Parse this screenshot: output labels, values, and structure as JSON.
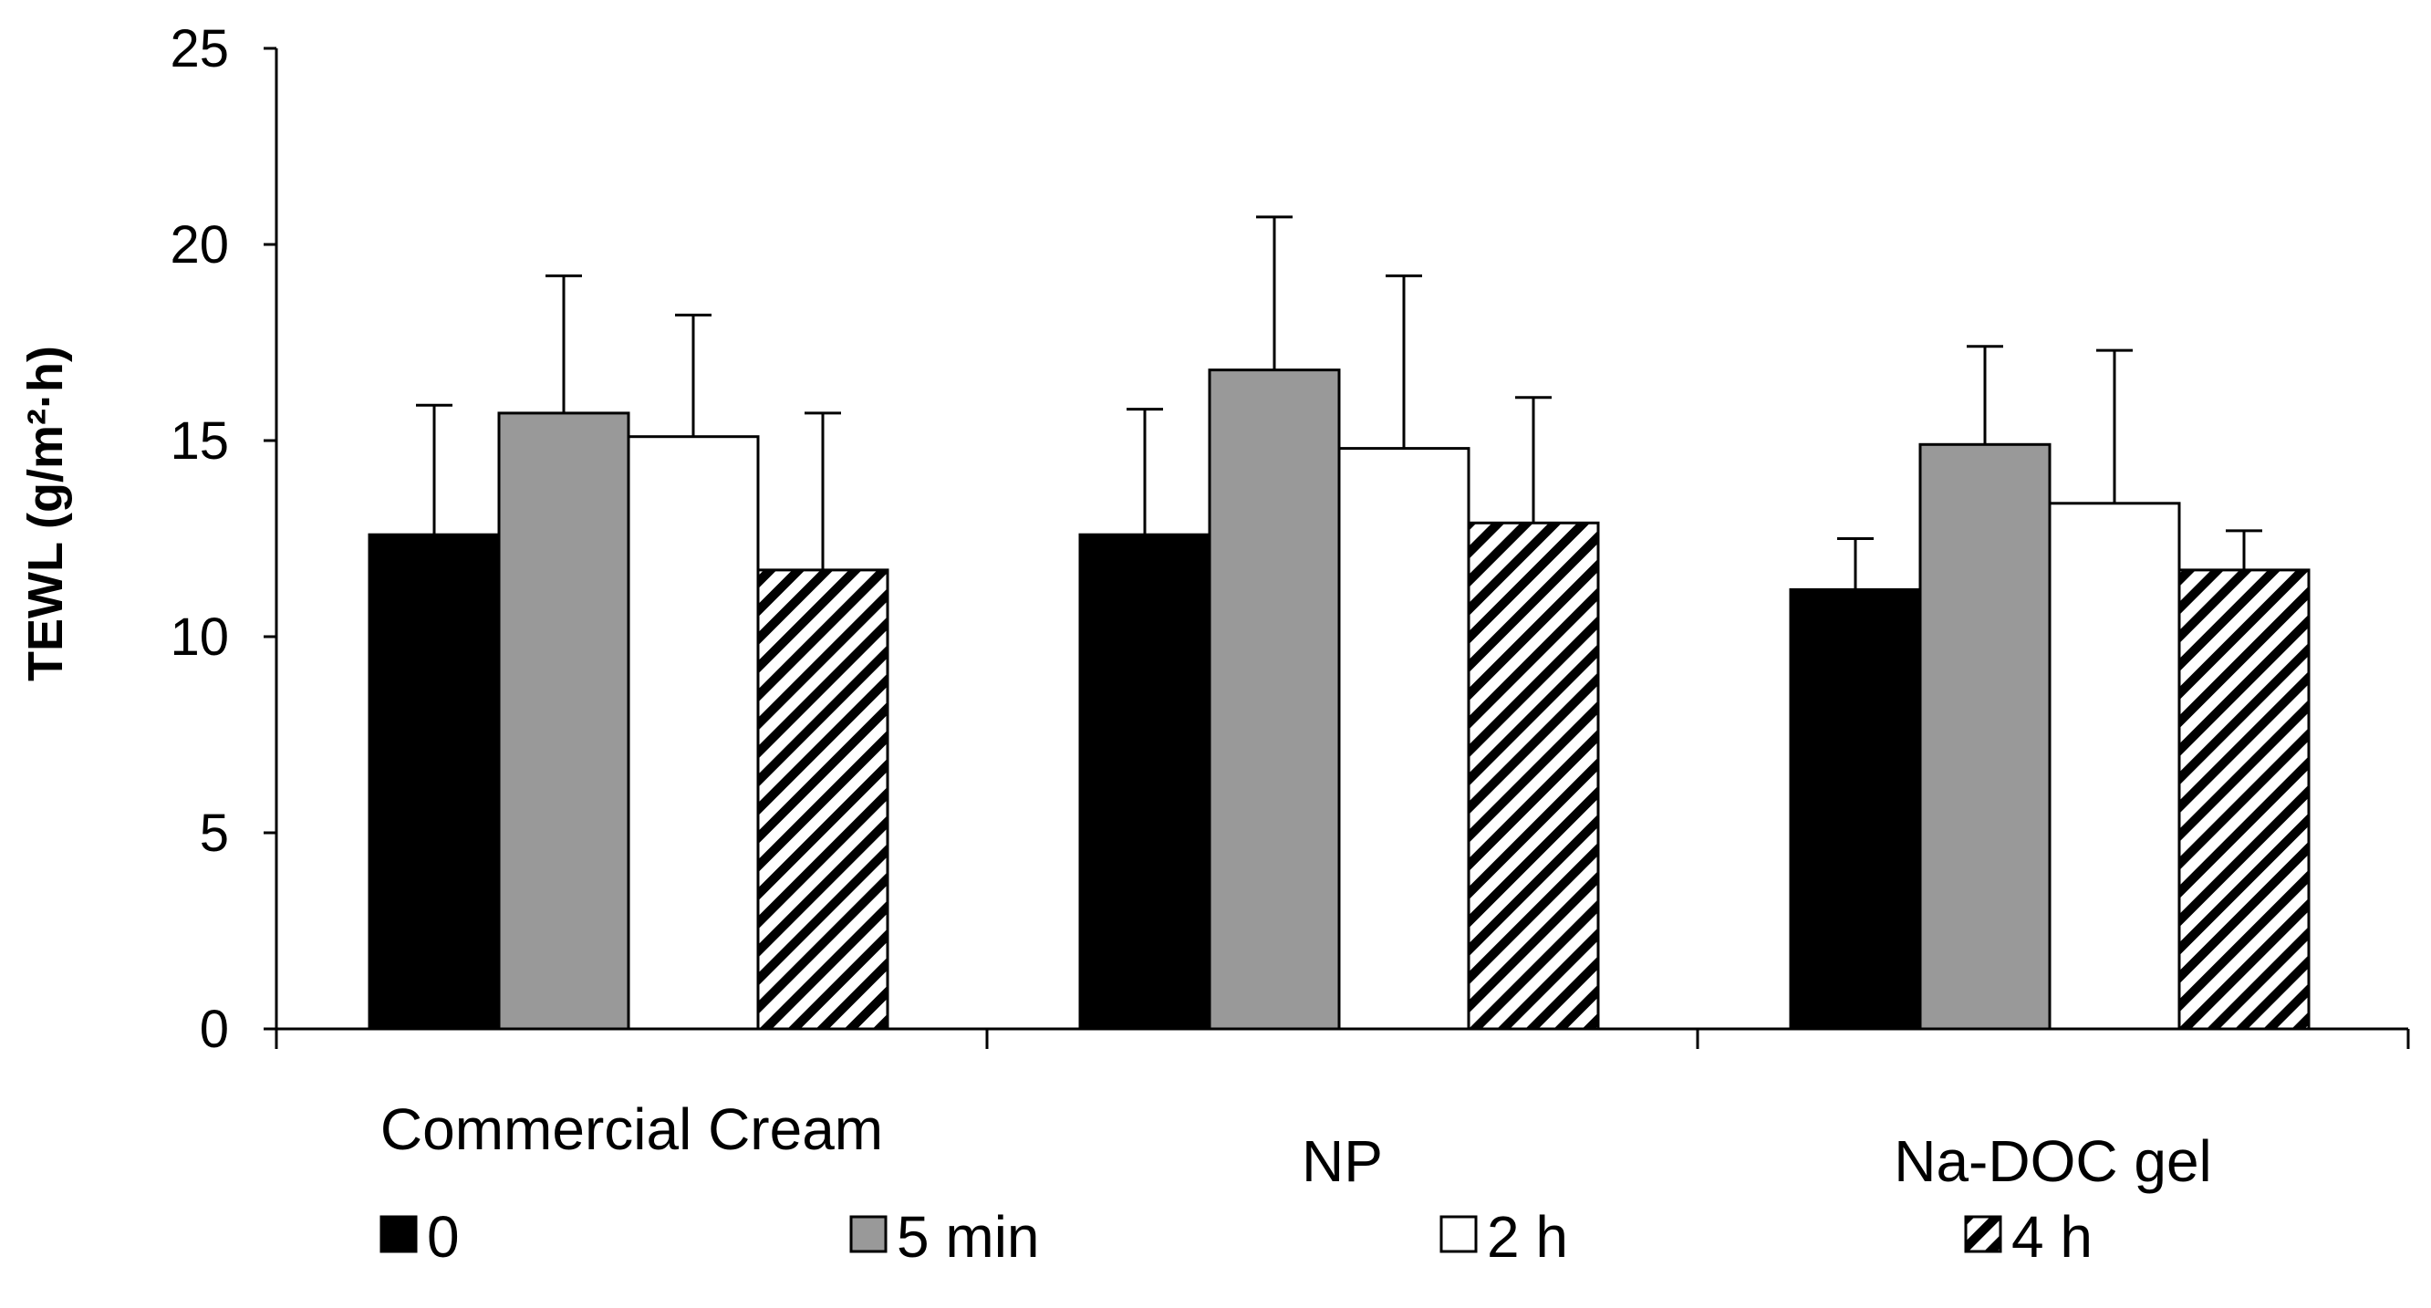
{
  "chart_data": {
    "type": "bar",
    "title": "",
    "xlabel": "",
    "ylabel": "TEWL (g/m²·h)",
    "ylim": [
      0,
      25
    ],
    "yticks": [
      "0",
      "5",
      "10",
      "15",
      "20",
      "25"
    ],
    "categories": [
      "Commercial Cream",
      "NP",
      "Na-DOC gel"
    ],
    "series": [
      {
        "name": "0",
        "fill": "#000000",
        "pattern": "solid",
        "values": [
          12.6,
          12.6,
          11.2
        ],
        "errors": [
          3.3,
          3.2,
          1.3
        ]
      },
      {
        "name": "5 min",
        "fill": "#999999",
        "pattern": "solid",
        "values": [
          15.7,
          16.8,
          14.9
        ],
        "errors": [
          3.5,
          3.9,
          2.5
        ]
      },
      {
        "name": "2 h",
        "fill": "#ffffff",
        "pattern": "solid",
        "values": [
          15.1,
          14.8,
          13.4
        ],
        "errors": [
          3.1,
          4.4,
          3.9
        ]
      },
      {
        "name": "4 h",
        "fill": "#ffffff",
        "pattern": "hatch",
        "values": [
          11.7,
          12.9,
          11.7
        ],
        "errors": [
          4.0,
          3.2,
          1.0
        ]
      }
    ],
    "legend_position": "bottom",
    "grid": false
  }
}
